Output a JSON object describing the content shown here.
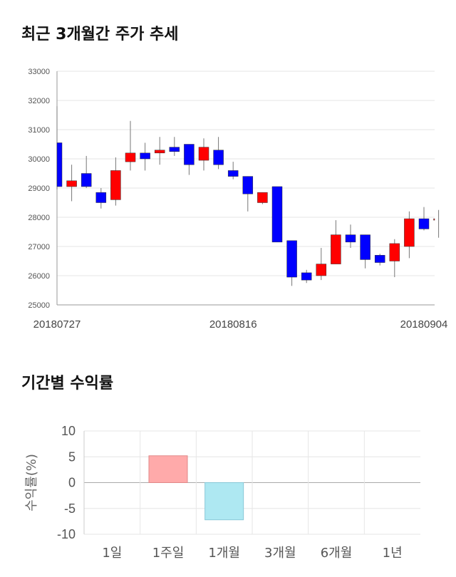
{
  "sections": {
    "price_title": "최근 3개월간 주가 추세",
    "return_title": "기간별 수익률"
  },
  "colors": {
    "up": "#ff0000",
    "down": "#0000ff",
    "positive_bar": "#ffaaaa",
    "negative_bar": "#aee8f2"
  },
  "chart_data": [
    {
      "type": "candlestick",
      "title": "최근 3개월간 주가 추세",
      "ylim": [
        25000,
        33000
      ],
      "y_ticks": [
        "25000",
        "26000",
        "27000",
        "28000",
        "29000",
        "30000",
        "31000",
        "32000",
        "33000"
      ],
      "x_tick_labels": [
        {
          "index": 0,
          "label": "20180727"
        },
        {
          "index": 12,
          "label": "20180816"
        },
        {
          "index": 25,
          "label": "20180904"
        }
      ],
      "grid": true,
      "candles": [
        {
          "o": 30550,
          "h": 31800,
          "l": 28950,
          "c": 29050
        },
        {
          "o": 29050,
          "h": 29800,
          "l": 28550,
          "c": 29250
        },
        {
          "o": 29500,
          "h": 30100,
          "l": 29000,
          "c": 29050
        },
        {
          "o": 28850,
          "h": 29000,
          "l": 28300,
          "c": 28500
        },
        {
          "o": 28600,
          "h": 30050,
          "l": 28400,
          "c": 29600
        },
        {
          "o": 29900,
          "h": 31300,
          "l": 29600,
          "c": 30200
        },
        {
          "o": 30200,
          "h": 30550,
          "l": 29600,
          "c": 30000
        },
        {
          "o": 30200,
          "h": 30750,
          "l": 29800,
          "c": 30300
        },
        {
          "o": 30400,
          "h": 30750,
          "l": 30100,
          "c": 30250
        },
        {
          "o": 30500,
          "h": 30500,
          "l": 29450,
          "c": 29800
        },
        {
          "o": 29950,
          "h": 30700,
          "l": 29600,
          "c": 30400
        },
        {
          "o": 30300,
          "h": 30750,
          "l": 29650,
          "c": 29800
        },
        {
          "o": 29600,
          "h": 29900,
          "l": 29300,
          "c": 29400
        },
        {
          "o": 29400,
          "h": 29400,
          "l": 28200,
          "c": 28800
        },
        {
          "o": 28500,
          "h": 28850,
          "l": 28450,
          "c": 28850
        },
        {
          "o": 29050,
          "h": 29050,
          "l": 27150,
          "c": 27150
        },
        {
          "o": 27200,
          "h": 27200,
          "l": 25650,
          "c": 25950
        },
        {
          "o": 26100,
          "h": 26200,
          "l": 25750,
          "c": 25850
        },
        {
          "o": 26000,
          "h": 26950,
          "l": 25850,
          "c": 26400
        },
        {
          "o": 26400,
          "h": 27900,
          "l": 26400,
          "c": 27400
        },
        {
          "o": 27400,
          "h": 27750,
          "l": 26950,
          "c": 27150
        },
        {
          "o": 27400,
          "h": 27400,
          "l": 26250,
          "c": 26550
        },
        {
          "o": 26700,
          "h": 26750,
          "l": 26350,
          "c": 26450
        },
        {
          "o": 26500,
          "h": 27250,
          "l": 25950,
          "c": 27100
        },
        {
          "o": 27000,
          "h": 28200,
          "l": 26600,
          "c": 27950
        },
        {
          "o": 27950,
          "h": 28350,
          "l": 27550,
          "c": 27600
        },
        {
          "o": 27900,
          "h": 28250,
          "l": 27300,
          "c": 27950
        }
      ]
    },
    {
      "type": "bar",
      "title": "기간별 수익률",
      "ylabel": "수익률(%)",
      "ylim": [
        -10,
        10
      ],
      "y_ticks": [
        "10",
        "5",
        "0",
        "-5",
        "-10"
      ],
      "categories": [
        "1일",
        "1주일",
        "1개월",
        "3개월",
        "6개월",
        "1년"
      ],
      "values": [
        0,
        5.2,
        -7.2,
        0,
        0,
        0
      ],
      "grid": true
    }
  ]
}
